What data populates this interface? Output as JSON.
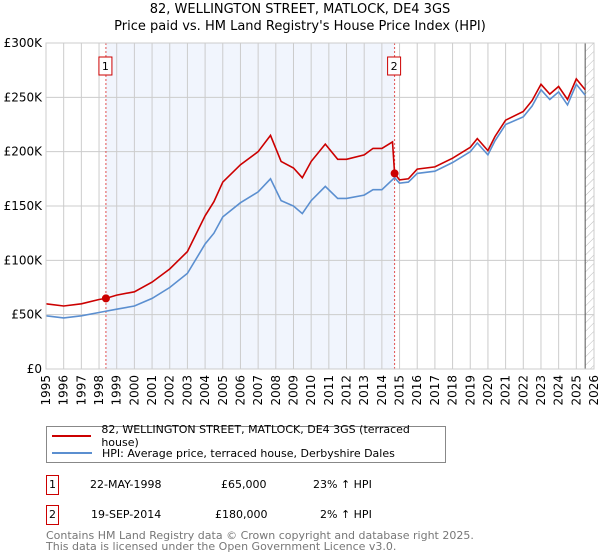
{
  "title_line1": "82, WELLINGTON STREET, MATLOCK, DE4 3GS",
  "title_line2": "Price paid vs. HM Land Registry's House Price Index (HPI)",
  "chart_data": {
    "type": "line",
    "title": "82, WELLINGTON STREET, MATLOCK, DE4 3GS — Price paid vs. HM Land Registry's House Price Index (HPI)",
    "xlim": [
      1995,
      2026
    ],
    "ylim": [
      0,
      300000
    ],
    "x_ticks": [
      "1995",
      "1996",
      "1997",
      "1998",
      "1999",
      "2000",
      "2001",
      "2002",
      "2003",
      "2004",
      "2005",
      "2006",
      "2007",
      "2008",
      "2009",
      "2010",
      "2011",
      "2012",
      "2013",
      "2014",
      "2015",
      "2016",
      "2017",
      "2018",
      "2019",
      "2020",
      "2021",
      "2022",
      "2023",
      "2024",
      "2025",
      "2026"
    ],
    "y_ticks": [
      {
        "v": 0,
        "label": "£0"
      },
      {
        "v": 50000,
        "label": "£50K"
      },
      {
        "v": 100000,
        "label": "£100K"
      },
      {
        "v": 150000,
        "label": "£150K"
      },
      {
        "v": 200000,
        "label": "£200K"
      },
      {
        "v": 250000,
        "label": "£250K"
      },
      {
        "v": 300000,
        "label": "£300K"
      }
    ],
    "grid": true,
    "shaded_range": [
      1998.39,
      2014.72
    ],
    "forecast_hatch_from": 2025.5,
    "series": [
      {
        "name": "82, WELLINGTON STREET, MATLOCK, DE4 3GS (terraced house)",
        "color": "#cc0000",
        "x": [
          1995,
          1996,
          1997,
          1998,
          1998.39,
          1999,
          2000,
          2001,
          2002,
          2003,
          2004,
          2004.5,
          2005,
          2006,
          2007,
          2007.7,
          2008.3,
          2009,
          2009.5,
          2010,
          2010.8,
          2011.5,
          2012,
          2013,
          2013.5,
          2014,
          2014.6,
          2014.72,
          2015,
          2015.5,
          2016,
          2017,
          2018,
          2019,
          2019.4,
          2020,
          2020.4,
          2021,
          2022,
          2022.5,
          2023,
          2023.5,
          2024,
          2024.5,
          2025,
          2025.5
        ],
        "y": [
          60000,
          58000,
          60000,
          64000,
          65000,
          68000,
          71000,
          80000,
          92000,
          108000,
          141000,
          154000,
          172000,
          188000,
          200000,
          215000,
          191000,
          185000,
          176000,
          191000,
          207000,
          193000,
          193000,
          197000,
          203000,
          203000,
          209000,
          180000,
          174000,
          175000,
          184000,
          186000,
          194000,
          204000,
          212000,
          201000,
          214000,
          229000,
          237000,
          247000,
          262000,
          253000,
          260000,
          248000,
          267000,
          257000
        ]
      },
      {
        "name": "HPI: Average price, terraced house, Derbyshire Dales",
        "color": "#5b8fd0",
        "x": [
          1995,
          1996,
          1997,
          1998,
          1999,
          2000,
          2001,
          2002,
          2003,
          2004,
          2004.5,
          2005,
          2006,
          2007,
          2007.7,
          2008.3,
          2009,
          2009.5,
          2010,
          2010.8,
          2011.5,
          2012,
          2013,
          2013.5,
          2014,
          2014.72,
          2015,
          2015.5,
          2016,
          2017,
          2018,
          2019,
          2019.4,
          2020,
          2020.4,
          2021,
          2022,
          2022.5,
          2023,
          2023.5,
          2024,
          2024.5,
          2025,
          2025.5
        ],
        "y": [
          49000,
          47000,
          49000,
          52000,
          55000,
          58000,
          65000,
          75000,
          88000,
          115000,
          125000,
          140000,
          153000,
          163000,
          175000,
          155000,
          150000,
          143000,
          155000,
          168000,
          157000,
          157000,
          160000,
          165000,
          165000,
          176000,
          171000,
          172000,
          180000,
          182000,
          190000,
          200000,
          208000,
          197000,
          210000,
          225000,
          232000,
          242000,
          257000,
          248000,
          255000,
          243000,
          262000,
          252000
        ]
      }
    ],
    "sales": [
      {
        "label": "1",
        "date": "22-MAY-1998",
        "x": 1998.39,
        "price_value": 65000,
        "price": "£65,000",
        "hpi_delta": "23% ↑ HPI"
      },
      {
        "label": "2",
        "date": "19-SEP-2014",
        "x": 2014.72,
        "price_value": 180000,
        "price": "£180,000",
        "hpi_delta": "2% ↑ HPI"
      }
    ]
  },
  "legend": {
    "price_paid": "82, WELLINGTON STREET, MATLOCK, DE4 3GS (terraced house)",
    "hpi": "HPI: Average price, terraced house, Derbyshire Dales"
  },
  "footer_line1": "Contains HM Land Registry data © Crown copyright and database right 2025.",
  "footer_line2": "This data is licensed under the Open Government Licence v3.0."
}
